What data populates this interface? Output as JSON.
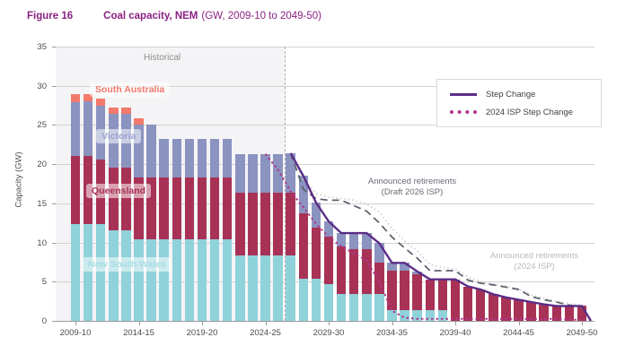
{
  "figure": {
    "label": "Figure 16",
    "title": "Coal capacity, NEM",
    "subtitle": "(GW, 2009-10 to 2049-50)"
  },
  "chart_data": {
    "type": "bar",
    "stacked": true,
    "title": "Coal capacity, NEM",
    "xlabel": "",
    "ylabel": "Capacity (GW)",
    "ylim": [
      0,
      35
    ],
    "ytick_step": 5,
    "grid": true,
    "historical_label": "Historical",
    "historical_divider_between": [
      "2025-26",
      "2026-27"
    ],
    "x_tick_labels": [
      "2009-10",
      "2014-15",
      "2019-20",
      "2024-25",
      "2029-30",
      "2034-35",
      "2039-40",
      "2044-45",
      "2049-50"
    ],
    "categories": [
      "2009-10",
      "2010-11",
      "2011-12",
      "2012-13",
      "2013-14",
      "2014-15",
      "2015-16",
      "2016-17",
      "2017-18",
      "2018-19",
      "2019-20",
      "2020-21",
      "2021-22",
      "2022-23",
      "2023-24",
      "2024-25",
      "2025-26",
      "2026-27",
      "2027-28",
      "2028-29",
      "2029-30",
      "2030-31",
      "2031-32",
      "2032-33",
      "2033-34",
      "2034-35",
      "2035-36",
      "2036-37",
      "2037-38",
      "2038-39",
      "2039-40",
      "2040-41",
      "2041-42",
      "2042-43",
      "2043-44",
      "2044-45",
      "2045-46",
      "2046-47",
      "2047-48",
      "2048-49",
      "2049-50"
    ],
    "series": [
      {
        "name": "New South Wales",
        "color": "#8fd2da",
        "values": [
          12.3,
          12.3,
          12.3,
          11.5,
          11.5,
          10.4,
          10.4,
          10.4,
          10.4,
          10.4,
          10.4,
          10.4,
          10.4,
          8.4,
          8.4,
          8.4,
          8.4,
          8.4,
          5.4,
          5.4,
          4.7,
          3.4,
          3.4,
          3.4,
          3.4,
          1.4,
          1.4,
          1.4,
          1.4,
          1.4,
          0,
          0,
          0,
          0,
          0,
          0,
          0,
          0,
          0,
          0,
          0
        ]
      },
      {
        "name": "Queensland",
        "color": "#a83256",
        "values": [
          8.8,
          8.8,
          8.3,
          8.1,
          8.1,
          7.9,
          7.9,
          7.9,
          7.9,
          7.9,
          7.9,
          7.9,
          7.9,
          7.9,
          7.9,
          7.9,
          7.9,
          7.9,
          8.3,
          6.5,
          6.1,
          6.1,
          5.8,
          5.8,
          4.0,
          5.0,
          5.0,
          4.6,
          3.9,
          3.9,
          5.3,
          4.4,
          4.0,
          3.4,
          3.0,
          2.7,
          2.4,
          2.1,
          1.9,
          1.9,
          1.9
        ]
      },
      {
        "name": "Victoria",
        "color": "#8b93c0",
        "values": [
          6.8,
          6.9,
          6.9,
          6.8,
          6.8,
          6.8,
          6.7,
          4.9,
          4.9,
          4.9,
          4.9,
          4.9,
          4.9,
          5.0,
          5.0,
          5.0,
          5.0,
          5.1,
          4.8,
          3.2,
          1.9,
          1.7,
          2.0,
          2.0,
          2.5,
          1.0,
          1.0,
          0.3,
          0,
          0,
          0,
          0,
          0,
          0,
          0,
          0,
          0,
          0,
          0,
          0,
          0
        ]
      },
      {
        "name": "South Australia",
        "color": "#f2796b",
        "values": [
          1.0,
          0.9,
          0.9,
          0.8,
          0.8,
          0.8,
          0,
          0,
          0,
          0,
          0,
          0,
          0,
          0,
          0,
          0,
          0,
          0,
          0,
          0,
          0,
          0,
          0,
          0,
          0,
          0,
          0,
          0,
          0,
          0,
          0,
          0,
          0,
          0,
          0,
          0,
          0,
          0,
          0,
          0,
          0
        ]
      }
    ],
    "lines": [
      {
        "name": "Announced retirements (2024 ISP)",
        "color": "#d0d0d0",
        "style": "fine-dot",
        "width": 1.8,
        "drops_to_zero_at_end": false,
        "points": [
          [
            "2026-27",
            21.4
          ],
          [
            "2027-28",
            18.0
          ],
          [
            "2028-29",
            16.3
          ],
          [
            "2029-30",
            15.8
          ],
          [
            "2030-31",
            15.6
          ],
          [
            "2031-32",
            15.4
          ],
          [
            "2032-33",
            14.9
          ],
          [
            "2033-34",
            13.9
          ],
          [
            "2034-35",
            11.8
          ],
          [
            "2035-36",
            10.2
          ],
          [
            "2036-37",
            8.9
          ],
          [
            "2037-38",
            7.2
          ],
          [
            "2038-39",
            6.8
          ],
          [
            "2039-40",
            6.6
          ],
          [
            "2040-41",
            5.6
          ],
          [
            "2041-42",
            5.0
          ],
          [
            "2042-43",
            4.7
          ],
          [
            "2043-44",
            4.4
          ],
          [
            "2044-45",
            4.1
          ],
          [
            "2045-46",
            3.3
          ],
          [
            "2046-47",
            2.9
          ],
          [
            "2047-48",
            2.5
          ],
          [
            "2048-49",
            2.2
          ],
          [
            "2049-50",
            2.0
          ]
        ]
      },
      {
        "name": "Announced retirements (Draft 2026 ISP)",
        "color": "#5d6470",
        "style": "dash",
        "width": 1.8,
        "drops_to_zero_at_end": false,
        "points": [
          [
            "2026-27",
            21.4
          ],
          [
            "2027-28",
            16.8
          ],
          [
            "2028-29",
            15.6
          ],
          [
            "2029-30",
            15.4
          ],
          [
            "2030-31",
            15.4
          ],
          [
            "2031-32",
            14.7
          ],
          [
            "2032-33",
            14.0
          ],
          [
            "2033-34",
            12.5
          ],
          [
            "2034-35",
            10.7
          ],
          [
            "2035-36",
            9.3
          ],
          [
            "2036-37",
            8.0
          ],
          [
            "2037-38",
            6.4
          ],
          [
            "2038-39",
            6.4
          ],
          [
            "2039-40",
            6.4
          ],
          [
            "2040-41",
            5.2
          ],
          [
            "2041-42",
            4.8
          ],
          [
            "2042-43",
            4.6
          ],
          [
            "2043-44",
            4.3
          ],
          [
            "2044-45",
            4.0
          ],
          [
            "2045-46",
            3.1
          ],
          [
            "2046-47",
            2.7
          ],
          [
            "2047-48",
            2.4
          ],
          [
            "2048-49",
            2.0
          ],
          [
            "2049-50",
            1.8
          ]
        ]
      },
      {
        "name": "2024 ISP Step Change",
        "color": "#b0378d",
        "style": "dense-dot",
        "width": 2,
        "drops_to_zero_at_end": true,
        "points": [
          [
            "2024-25",
            21.3
          ],
          [
            "2025-26",
            19.3
          ],
          [
            "2026-27",
            16.5
          ],
          [
            "2027-28",
            14.5
          ],
          [
            "2028-29",
            12.4
          ],
          [
            "2029-30",
            10.7
          ],
          [
            "2030-31",
            9.5
          ],
          [
            "2031-32",
            8.6
          ],
          [
            "2032-33",
            7.7
          ],
          [
            "2033-34",
            5.0
          ],
          [
            "2034-35",
            1.3
          ],
          [
            "2035-36",
            0.4
          ],
          [
            "2036-37",
            0.25
          ],
          [
            "2037-38",
            0.25
          ],
          [
            "2038-39",
            0.25
          ],
          [
            "2039-40",
            0.25
          ],
          [
            "2040-41",
            0.25
          ],
          [
            "2041-42",
            0.25
          ],
          [
            "2042-43",
            0.25
          ],
          [
            "2043-44",
            0.25
          ],
          [
            "2044-45",
            0.25
          ],
          [
            "2045-46",
            0.25
          ],
          [
            "2046-47",
            0.25
          ],
          [
            "2047-48",
            0.25
          ],
          [
            "2048-49",
            0.2
          ],
          [
            "2049-50",
            0.1
          ]
        ]
      },
      {
        "name": "Step Change",
        "color": "#5b2d86",
        "style": "solid",
        "width": 2.4,
        "drops_to_zero_at_end": true,
        "points": [
          [
            "2026-27",
            21.4
          ],
          [
            "2027-28",
            18.5
          ],
          [
            "2028-29",
            15.1
          ],
          [
            "2029-30",
            12.7
          ],
          [
            "2030-31",
            11.2
          ],
          [
            "2031-32",
            11.2
          ],
          [
            "2032-33",
            11.2
          ],
          [
            "2033-34",
            9.9
          ],
          [
            "2034-35",
            7.4
          ],
          [
            "2035-36",
            7.4
          ],
          [
            "2036-37",
            6.3
          ],
          [
            "2037-38",
            5.3
          ],
          [
            "2038-39",
            5.3
          ],
          [
            "2039-40",
            5.3
          ],
          [
            "2040-41",
            4.4
          ],
          [
            "2041-42",
            4.0
          ],
          [
            "2042-43",
            3.4
          ],
          [
            "2043-44",
            3.0
          ],
          [
            "2044-45",
            2.7
          ],
          [
            "2045-46",
            2.4
          ],
          [
            "2046-47",
            2.1
          ],
          [
            "2047-48",
            1.9
          ],
          [
            "2048-49",
            1.9
          ],
          [
            "2049-50",
            1.9
          ]
        ]
      }
    ],
    "annotations": [
      {
        "line1": "Announced retirements",
        "line2": "(Draft 2026 ISP)"
      },
      {
        "line1": "Announced retirements",
        "line2": "(2024 ISP)"
      }
    ]
  },
  "region_labels": [
    {
      "label": "South Australia",
      "color": "#f2796b"
    },
    {
      "label": "Victoria",
      "color": "#9aa2cf"
    },
    {
      "label": "Queensland",
      "color": "#a83256"
    },
    {
      "label": "New South Wales",
      "color": "#a7dce2"
    }
  ],
  "legend": {
    "items": [
      {
        "label": "Step Change",
        "color": "#5b2d86",
        "style": "solid"
      },
      {
        "label": "2024 ISP Step Change",
        "color": "#b0378d",
        "style": "dense-dot"
      }
    ]
  }
}
